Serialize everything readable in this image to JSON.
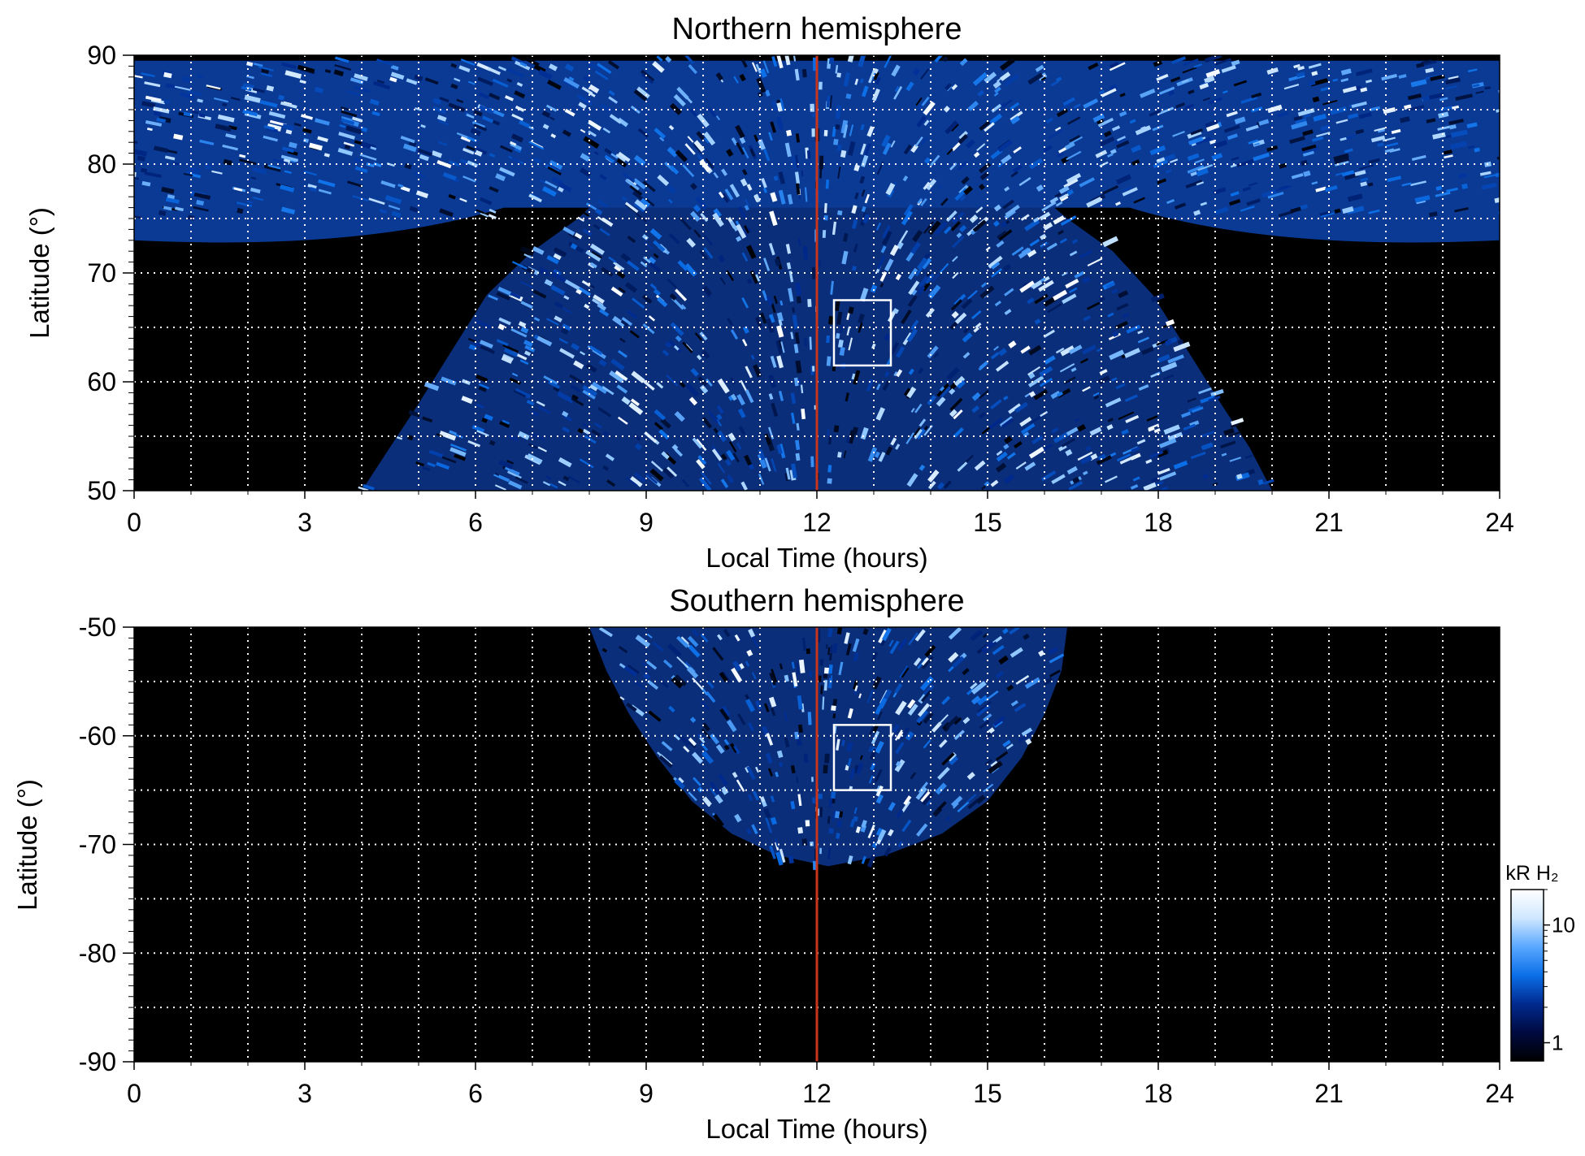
{
  "chart_data": [
    {
      "type": "heatmap",
      "title": "Northern hemisphere",
      "xlabel": "Local Time (hours)",
      "ylabel": "Latitude (°)",
      "xlim": [
        0,
        24
      ],
      "ylim": [
        50,
        90
      ],
      "xticks": [
        0,
        3,
        6,
        9,
        12,
        15,
        18,
        21,
        24
      ],
      "yticks": [
        50,
        60,
        70,
        80,
        90
      ],
      "grid": true,
      "background": "#000000",
      "coverage_edge": [
        [
          4.0,
          50
        ],
        [
          4.5,
          54
        ],
        [
          5.0,
          58
        ],
        [
          5.6,
          63
        ],
        [
          6.2,
          68
        ],
        [
          7.0,
          72
        ],
        [
          7.8,
          75
        ],
        [
          8.6,
          79
        ],
        [
          9.5,
          82
        ],
        [
          10.3,
          86
        ],
        [
          11.2,
          89
        ],
        [
          12.8,
          89
        ],
        [
          13.7,
          86
        ],
        [
          14.6,
          82
        ],
        [
          15.5,
          79
        ],
        [
          16.4,
          75
        ],
        [
          17.2,
          72
        ],
        [
          17.9,
          68
        ],
        [
          18.5,
          63
        ],
        [
          19.1,
          58
        ],
        [
          19.6,
          54
        ],
        [
          20.0,
          50
        ]
      ],
      "polar_band": {
        "lat_min": 73,
        "lat_max": 89.5,
        "lt_min": 0,
        "lt_max": 24
      },
      "noon_line_lt": 12,
      "noon_line_color": "#c8351c",
      "box": {
        "lt": [
          12.3,
          13.3
        ],
        "lat": [
          61.5,
          67.5
        ],
        "color": "#ffffff"
      },
      "colormap": [
        "#000000",
        "#002a8f",
        "#0b6fe8",
        "#8fc7ff",
        "#ffffff"
      ]
    },
    {
      "type": "heatmap",
      "title": "Southern hemisphere",
      "xlabel": "Local Time (hours)",
      "ylabel": "Latitude (°)",
      "xlim": [
        0,
        24
      ],
      "ylim": [
        -90,
        -50
      ],
      "xticks": [
        0,
        3,
        6,
        9,
        12,
        15,
        18,
        21,
        24
      ],
      "yticks": [
        -90,
        -80,
        -70,
        -60,
        -50
      ],
      "grid": true,
      "background": "#000000",
      "coverage_edge": [
        [
          8.0,
          -50
        ],
        [
          8.3,
          -54
        ],
        [
          8.7,
          -58
        ],
        [
          9.2,
          -62
        ],
        [
          9.8,
          -66
        ],
        [
          10.5,
          -69
        ],
        [
          11.3,
          -71
        ],
        [
          12.2,
          -72
        ],
        [
          13.2,
          -71
        ],
        [
          14.2,
          -69
        ],
        [
          15.0,
          -66
        ],
        [
          15.6,
          -62
        ],
        [
          16.0,
          -58
        ],
        [
          16.3,
          -54
        ],
        [
          16.4,
          -50
        ]
      ],
      "noon_line_lt": 12,
      "noon_line_color": "#c8351c",
      "box": {
        "lt": [
          12.3,
          13.3
        ],
        "lat": [
          -65,
          -59
        ],
        "color": "#ffffff"
      },
      "colormap": [
        "#000000",
        "#002a8f",
        "#0b6fe8",
        "#8fc7ff",
        "#ffffff"
      ]
    }
  ],
  "colorbar": {
    "label": "kR H₂",
    "ticks": [
      {
        "value": 10,
        "text": "10"
      },
      {
        "value": 1,
        "text": "1"
      }
    ],
    "scale": "log",
    "range": [
      0.7,
      20
    ],
    "colors": [
      "#000000",
      "#000a40",
      "#002a8f",
      "#0b6fe8",
      "#5aa8ff",
      "#cfe7ff",
      "#ffffff"
    ]
  }
}
